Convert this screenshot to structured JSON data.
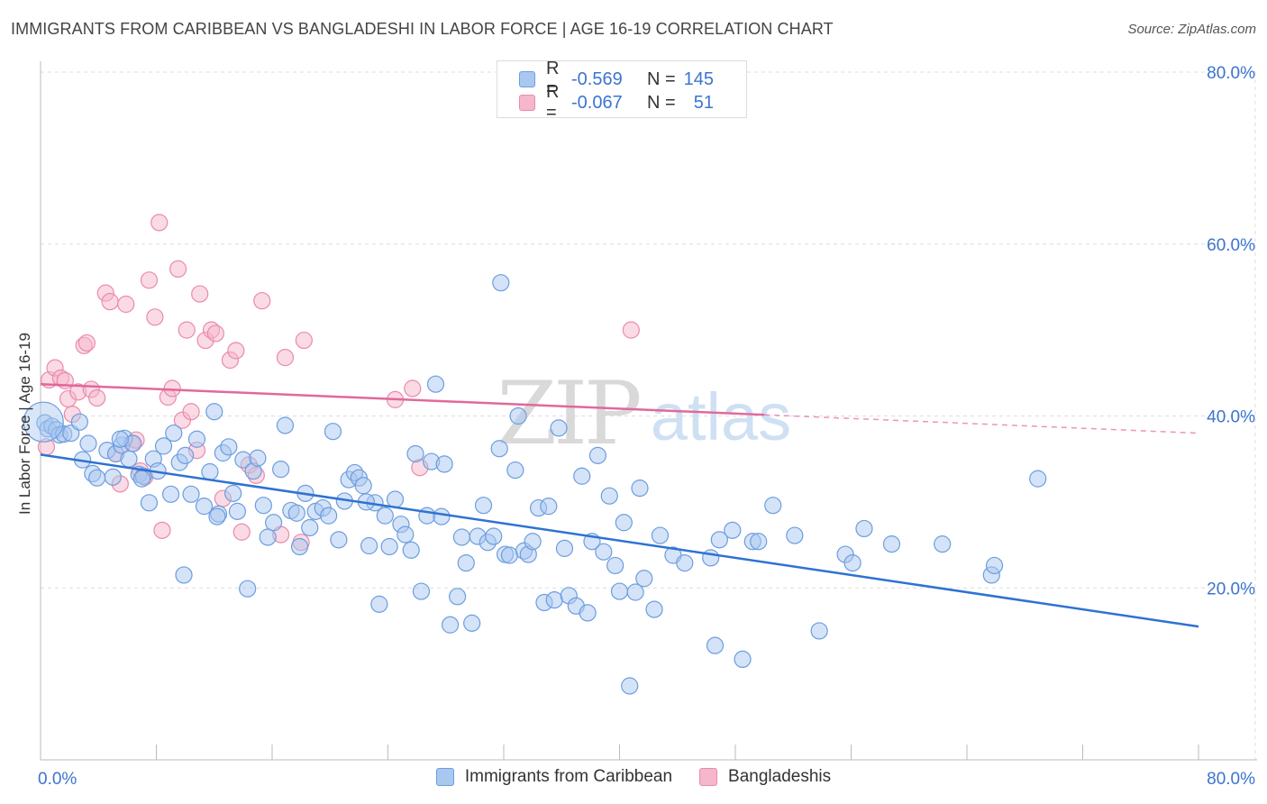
{
  "header": {
    "title": "IMMIGRANTS FROM CARIBBEAN VS BANGLADESHI IN LABOR FORCE | AGE 16-19 CORRELATION CHART",
    "source": "Source: ZipAtlas.com"
  },
  "watermark": {
    "zip": "ZIP",
    "atlas": "atlas"
  },
  "legend_top": [
    {
      "r_label": "R =",
      "r_value": "-0.569",
      "n_label": "N =",
      "n_value": "145"
    },
    {
      "r_label": "R =",
      "r_value": "-0.067",
      "n_label": "N =",
      "n_value": "51"
    }
  ],
  "legend_bottom": [
    {
      "label": "Immigrants from Caribbean"
    },
    {
      "label": "Bangladeshis"
    }
  ],
  "colors": {
    "blue_fill": "#a9c8f0",
    "blue_stroke": "#6c9de0",
    "blue_line": "#2e72d2",
    "pink_fill": "#f6b6cb",
    "pink_stroke": "#ea8aaa",
    "pink_line": "#e2689a",
    "tick_label": "#3b74d0",
    "grid": "#dddddd"
  },
  "chart_data": {
    "type": "scatter",
    "title": "IMMIGRANTS FROM CARIBBEAN VS BANGLADESHI IN LABOR FORCE | AGE 16-19 CORRELATION CHART",
    "xlabel": "",
    "ylabel": "In Labor Force | Age 16-19",
    "xlim": [
      0,
      80
    ],
    "ylim": [
      0,
      80
    ],
    "x_tick_labels": [
      "0.0%",
      "80.0%"
    ],
    "y_tick_labels": [
      {
        "value": 80,
        "label": "80.0%"
      },
      {
        "value": 60,
        "label": "60.0%"
      },
      {
        "value": 40,
        "label": "40.0%"
      },
      {
        "value": 20,
        "label": "20.0%"
      }
    ],
    "grid": true,
    "legend_position": "top-center",
    "series": [
      {
        "name": "Immigrants from Caribbean",
        "color": "#a9c8f0",
        "trend": {
          "x": [
            0,
            80
          ],
          "y": [
            35.5,
            15.5
          ],
          "dashed_from": null
        },
        "points": [
          [
            0.3,
            39.2
          ],
          [
            0.5,
            38.5
          ],
          [
            0.8,
            38.8
          ],
          [
            1.1,
            38.4
          ],
          [
            1.3,
            37.8
          ],
          [
            1.6,
            37.9
          ],
          [
            2.1,
            38.0
          ],
          [
            2.7,
            39.3
          ],
          [
            2.9,
            34.9
          ],
          [
            3.3,
            36.8
          ],
          [
            3.6,
            33.3
          ],
          [
            3.9,
            32.8
          ],
          [
            4.6,
            36.0
          ],
          [
            5.0,
            32.9
          ],
          [
            5.2,
            35.6
          ],
          [
            5.6,
            36.6
          ],
          [
            5.8,
            37.4
          ],
          [
            6.1,
            35.0
          ],
          [
            6.4,
            36.8
          ],
          [
            6.8,
            33.2
          ],
          [
            7.1,
            33.0
          ],
          [
            7.5,
            29.9
          ],
          [
            7.8,
            35.0
          ],
          [
            8.1,
            33.6
          ],
          [
            8.5,
            36.5
          ],
          [
            9.0,
            30.9
          ],
          [
            9.2,
            38.0
          ],
          [
            9.6,
            34.6
          ],
          [
            9.9,
            21.5
          ],
          [
            10.0,
            35.4
          ],
          [
            10.4,
            30.9
          ],
          [
            10.8,
            37.3
          ],
          [
            11.3,
            29.5
          ],
          [
            11.7,
            33.5
          ],
          [
            12.0,
            40.5
          ],
          [
            12.3,
            28.6
          ],
          [
            12.6,
            35.7
          ],
          [
            13.0,
            36.4
          ],
          [
            13.3,
            31.0
          ],
          [
            13.6,
            28.9
          ],
          [
            14.0,
            34.9
          ],
          [
            14.3,
            19.9
          ],
          [
            14.7,
            33.6
          ],
          [
            15.0,
            35.1
          ],
          [
            15.4,
            29.6
          ],
          [
            15.7,
            25.9
          ],
          [
            16.1,
            27.6
          ],
          [
            16.6,
            33.8
          ],
          [
            16.9,
            38.9
          ],
          [
            17.3,
            29.0
          ],
          [
            17.7,
            28.7
          ],
          [
            17.9,
            24.8
          ],
          [
            18.3,
            31.0
          ],
          [
            18.6,
            27.0
          ],
          [
            19.0,
            28.9
          ],
          [
            19.5,
            29.3
          ],
          [
            19.9,
            28.4
          ],
          [
            20.2,
            38.2
          ],
          [
            20.6,
            25.6
          ],
          [
            21.0,
            30.1
          ],
          [
            21.3,
            32.6
          ],
          [
            21.7,
            33.4
          ],
          [
            22.0,
            32.8
          ],
          [
            22.3,
            31.9
          ],
          [
            22.7,
            24.9
          ],
          [
            23.1,
            29.9
          ],
          [
            23.4,
            18.1
          ],
          [
            23.8,
            28.4
          ],
          [
            24.1,
            24.8
          ],
          [
            24.5,
            30.3
          ],
          [
            24.9,
            27.4
          ],
          [
            25.2,
            26.2
          ],
          [
            25.6,
            24.4
          ],
          [
            25.9,
            35.6
          ],
          [
            26.3,
            19.6
          ],
          [
            26.7,
            28.4
          ],
          [
            27.0,
            34.7
          ],
          [
            27.3,
            43.7
          ],
          [
            27.7,
            28.3
          ],
          [
            27.9,
            34.4
          ],
          [
            28.3,
            15.7
          ],
          [
            28.8,
            19.0
          ],
          [
            29.1,
            25.9
          ],
          [
            29.4,
            22.9
          ],
          [
            29.8,
            15.9
          ],
          [
            30.2,
            26.0
          ],
          [
            30.6,
            29.6
          ],
          [
            30.9,
            25.3
          ],
          [
            31.3,
            26.0
          ],
          [
            31.7,
            36.2
          ],
          [
            32.1,
            23.9
          ],
          [
            32.4,
            23.8
          ],
          [
            32.8,
            33.7
          ],
          [
            33.0,
            40.0
          ],
          [
            33.4,
            24.3
          ],
          [
            33.7,
            23.9
          ],
          [
            34.0,
            25.4
          ],
          [
            34.4,
            29.3
          ],
          [
            34.8,
            18.3
          ],
          [
            35.1,
            29.5
          ],
          [
            35.5,
            18.6
          ],
          [
            35.8,
            38.6
          ],
          [
            36.2,
            24.6
          ],
          [
            36.5,
            19.1
          ],
          [
            37.0,
            17.9
          ],
          [
            37.4,
            33.0
          ],
          [
            37.8,
            17.1
          ],
          [
            38.1,
            25.4
          ],
          [
            38.5,
            35.4
          ],
          [
            38.9,
            24.2
          ],
          [
            39.3,
            30.7
          ],
          [
            39.7,
            22.6
          ],
          [
            40.0,
            19.6
          ],
          [
            40.3,
            27.6
          ],
          [
            40.7,
            8.6
          ],
          [
            41.1,
            19.5
          ],
          [
            41.4,
            31.6
          ],
          [
            41.7,
            21.1
          ],
          [
            42.4,
            17.5
          ],
          [
            42.8,
            26.1
          ],
          [
            43.7,
            23.8
          ],
          [
            44.5,
            22.9
          ],
          [
            46.3,
            23.5
          ],
          [
            46.6,
            13.3
          ],
          [
            46.9,
            25.6
          ],
          [
            47.8,
            26.7
          ],
          [
            48.5,
            11.7
          ],
          [
            49.2,
            25.4
          ],
          [
            49.6,
            25.4
          ],
          [
            50.6,
            29.6
          ],
          [
            52.1,
            26.1
          ],
          [
            53.8,
            15.0
          ],
          [
            55.6,
            23.9
          ],
          [
            56.1,
            22.9
          ],
          [
            56.9,
            26.9
          ],
          [
            58.8,
            25.1
          ],
          [
            62.3,
            25.1
          ],
          [
            65.7,
            21.5
          ],
          [
            65.9,
            22.6
          ],
          [
            68.9,
            32.7
          ],
          [
            31.8,
            55.5
          ],
          [
            5.5,
            37.3
          ],
          [
            22.5,
            30.0
          ],
          [
            7.0,
            32.7
          ],
          [
            12.2,
            28.3
          ]
        ]
      },
      {
        "name": "Bangladeshis",
        "color": "#f6b6cb",
        "trend": {
          "x": [
            0,
            80
          ],
          "y": [
            43.7,
            38.0
          ],
          "dashed_from": 50
        },
        "points": [
          [
            0.4,
            36.4
          ],
          [
            0.6,
            44.2
          ],
          [
            1.0,
            45.6
          ],
          [
            1.4,
            44.4
          ],
          [
            1.7,
            44.1
          ],
          [
            1.9,
            42.0
          ],
          [
            2.2,
            40.2
          ],
          [
            2.6,
            42.8
          ],
          [
            3.0,
            48.2
          ],
          [
            3.2,
            48.5
          ],
          [
            3.5,
            43.1
          ],
          [
            3.9,
            42.1
          ],
          [
            4.5,
            54.3
          ],
          [
            4.8,
            53.3
          ],
          [
            5.2,
            35.6
          ],
          [
            5.5,
            32.1
          ],
          [
            5.9,
            53.0
          ],
          [
            6.3,
            36.8
          ],
          [
            6.6,
            37.2
          ],
          [
            6.9,
            33.6
          ],
          [
            7.2,
            32.9
          ],
          [
            7.5,
            55.8
          ],
          [
            7.9,
            51.5
          ],
          [
            8.2,
            62.5
          ],
          [
            8.4,
            26.7
          ],
          [
            8.8,
            42.2
          ],
          [
            9.1,
            43.2
          ],
          [
            9.5,
            57.1
          ],
          [
            9.8,
            39.5
          ],
          [
            10.1,
            50.0
          ],
          [
            10.4,
            40.5
          ],
          [
            10.8,
            36.0
          ],
          [
            11.0,
            54.2
          ],
          [
            11.4,
            48.8
          ],
          [
            11.8,
            50.0
          ],
          [
            12.1,
            49.6
          ],
          [
            12.6,
            30.4
          ],
          [
            13.1,
            46.5
          ],
          [
            13.5,
            47.6
          ],
          [
            13.9,
            26.5
          ],
          [
            14.4,
            34.3
          ],
          [
            14.9,
            33.1
          ],
          [
            15.3,
            53.4
          ],
          [
            16.6,
            26.2
          ],
          [
            16.9,
            46.8
          ],
          [
            18.0,
            25.3
          ],
          [
            18.2,
            48.8
          ],
          [
            24.5,
            41.9
          ],
          [
            25.7,
            43.2
          ],
          [
            26.2,
            34.0
          ],
          [
            40.8,
            50.0
          ]
        ]
      }
    ]
  }
}
